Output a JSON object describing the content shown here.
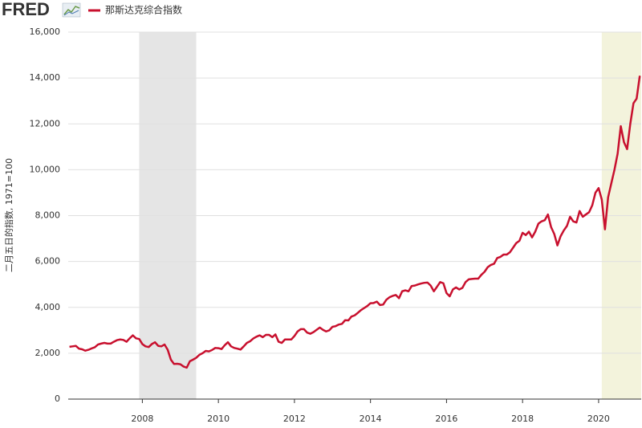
{
  "logo": "FRED",
  "chart_data": {
    "type": "line",
    "y_label": "二月五日的指数, 1971=100",
    "xlim": [
      2006.05,
      2021.12
    ],
    "xticks": [
      2008,
      2010,
      2012,
      2014,
      2016,
      2018,
      2020
    ],
    "ylim": [
      0,
      16000
    ],
    "yticks": [
      0,
      {
        "value": 2000,
        "label": "2,000"
      },
      {
        "value": 4000,
        "label": "4,000"
      },
      {
        "value": 6000,
        "label": "6,000"
      },
      {
        "value": 8000,
        "label": "8,000"
      },
      {
        "value": 10000,
        "label": "10,000"
      },
      {
        "value": 12000,
        "label": "12,000"
      },
      {
        "value": 14000,
        "label": "14,000"
      },
      {
        "value": 16000,
        "label": "16,000"
      }
    ],
    "grid": true,
    "shaded_ranges": [
      {
        "x": [
          2007.917,
          2009.417
        ],
        "color": "#e5e5e5"
      },
      {
        "x": [
          2020.083,
          2021.12
        ],
        "color": "#f3f3dc"
      }
    ],
    "x": [
      2006.083,
      2006.167,
      2006.25,
      2006.333,
      2006.417,
      2006.5,
      2006.583,
      2006.667,
      2006.75,
      2006.833,
      2006.917,
      2007,
      2007.083,
      2007.167,
      2007.25,
      2007.333,
      2007.417,
      2007.5,
      2007.583,
      2007.667,
      2007.75,
      2007.833,
      2007.917,
      2008,
      2008.083,
      2008.167,
      2008.25,
      2008.333,
      2008.417,
      2008.5,
      2008.583,
      2008.667,
      2008.75,
      2008.833,
      2008.917,
      2009,
      2009.083,
      2009.167,
      2009.25,
      2009.333,
      2009.417,
      2009.5,
      2009.583,
      2009.667,
      2009.75,
      2009.833,
      2009.917,
      2010,
      2010.083,
      2010.167,
      2010.25,
      2010.333,
      2010.417,
      2010.5,
      2010.583,
      2010.667,
      2010.75,
      2010.833,
      2010.917,
      2011,
      2011.083,
      2011.167,
      2011.25,
      2011.333,
      2011.417,
      2011.5,
      2011.583,
      2011.667,
      2011.75,
      2011.833,
      2011.917,
      2012,
      2012.083,
      2012.167,
      2012.25,
      2012.333,
      2012.417,
      2012.5,
      2012.583,
      2012.667,
      2012.75,
      2012.833,
      2012.917,
      2013,
      2013.083,
      2013.167,
      2013.25,
      2013.333,
      2013.417,
      2013.5,
      2013.583,
      2013.667,
      2013.75,
      2013.833,
      2013.917,
      2014,
      2014.083,
      2014.167,
      2014.25,
      2014.333,
      2014.417,
      2014.5,
      2014.583,
      2014.667,
      2014.75,
      2014.833,
      2014.917,
      2015,
      2015.083,
      2015.167,
      2015.25,
      2015.333,
      2015.417,
      2015.5,
      2015.583,
      2015.667,
      2015.75,
      2015.833,
      2015.917,
      2016,
      2016.083,
      2016.167,
      2016.25,
      2016.333,
      2016.417,
      2016.5,
      2016.583,
      2016.667,
      2016.75,
      2016.833,
      2016.917,
      2017,
      2017.083,
      2017.167,
      2017.25,
      2017.333,
      2017.417,
      2017.5,
      2017.583,
      2017.667,
      2017.75,
      2017.833,
      2017.917,
      2018,
      2018.083,
      2018.167,
      2018.25,
      2018.333,
      2018.417,
      2018.5,
      2018.583,
      2018.667,
      2018.75,
      2018.833,
      2018.917,
      2019,
      2019.083,
      2019.167,
      2019.25,
      2019.333,
      2019.417,
      2019.5,
      2019.583,
      2019.667,
      2019.75,
      2019.833,
      2019.917,
      2020,
      2020.083,
      2020.167,
      2020.25,
      2020.333,
      2020.417,
      2020.5,
      2020.583,
      2020.667,
      2020.75,
      2020.833,
      2020.917,
      2021,
      2021.083
    ],
    "series": [
      {
        "name": "那斯达克综合指数",
        "color": "#c8102e",
        "values": [
          2280,
          2300,
          2320,
          2200,
          2170,
          2110,
          2150,
          2210,
          2260,
          2380,
          2420,
          2450,
          2420,
          2420,
          2500,
          2570,
          2600,
          2580,
          2500,
          2650,
          2780,
          2650,
          2620,
          2400,
          2300,
          2270,
          2400,
          2480,
          2320,
          2300,
          2380,
          2150,
          1720,
          1530,
          1540,
          1520,
          1420,
          1370,
          1650,
          1720,
          1800,
          1930,
          2000,
          2100,
          2080,
          2140,
          2230,
          2220,
          2180,
          2350,
          2480,
          2300,
          2230,
          2200,
          2160,
          2300,
          2450,
          2520,
          2640,
          2720,
          2780,
          2700,
          2800,
          2800,
          2700,
          2820,
          2500,
          2450,
          2600,
          2600,
          2600,
          2750,
          2950,
          3050,
          3050,
          2900,
          2850,
          2920,
          3020,
          3120,
          3020,
          2950,
          3000,
          3150,
          3180,
          3250,
          3280,
          3440,
          3430,
          3600,
          3650,
          3760,
          3880,
          3970,
          4060,
          4180,
          4190,
          4250,
          4100,
          4120,
          4330,
          4440,
          4500,
          4540,
          4400,
          4700,
          4740,
          4700,
          4930,
          4950,
          5000,
          5040,
          5070,
          5080,
          4950,
          4700,
          4900,
          5100,
          5050,
          4620,
          4480,
          4780,
          4870,
          4780,
          4850,
          5100,
          5220,
          5240,
          5250,
          5250,
          5420,
          5550,
          5750,
          5850,
          5900,
          6150,
          6200,
          6300,
          6300,
          6400,
          6600,
          6800,
          6900,
          7250,
          7150,
          7300,
          7050,
          7300,
          7650,
          7750,
          7800,
          8050,
          7500,
          7200,
          6700,
          7100,
          7350,
          7550,
          7950,
          7750,
          7700,
          8200,
          7950,
          8050,
          8150,
          8450,
          9000,
          9200,
          8700,
          7400,
          8800,
          9400,
          10000,
          10700,
          11900,
          11200,
          10900,
          12000,
          12900,
          13100,
          14100
        ]
      }
    ]
  }
}
